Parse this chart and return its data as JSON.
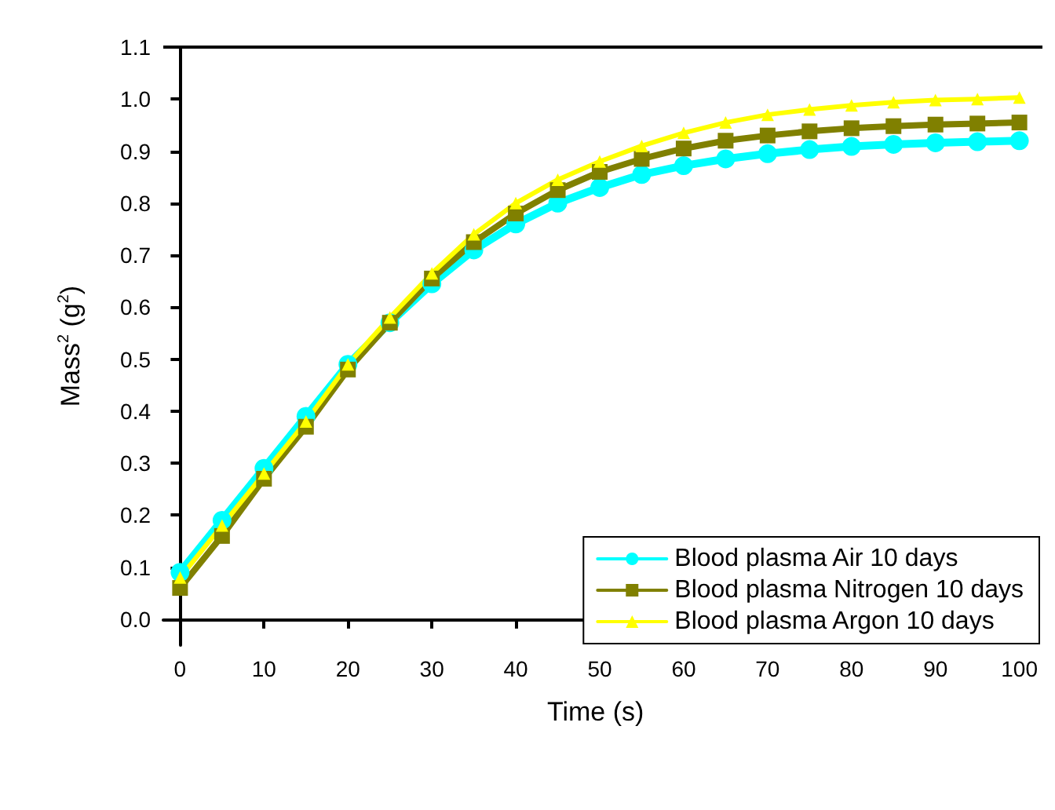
{
  "chart_data": {
    "type": "line",
    "xlabel": "Time (s)",
    "ylabel": "Mass$^{2}$ (g$^{2}$)",
    "x": [
      0,
      5,
      10,
      15,
      20,
      25,
      30,
      35,
      40,
      45,
      50,
      55,
      60,
      65,
      70,
      75,
      80,
      85,
      90,
      95,
      100
    ],
    "series": [
      {
        "name": "Blood plasma Air 10 days",
        "color": "#00ffff",
        "marker": "circle",
        "values": [
          0.09,
          0.19,
          0.29,
          0.39,
          0.49,
          0.57,
          0.645,
          0.71,
          0.76,
          0.8,
          0.83,
          0.855,
          0.872,
          0.885,
          0.895,
          0.903,
          0.909,
          0.913,
          0.916,
          0.918,
          0.92
        ]
      },
      {
        "name": "Blood plasma Nitrogen 10 days",
        "color": "#808000",
        "marker": "square",
        "values": [
          0.06,
          0.16,
          0.27,
          0.37,
          0.48,
          0.57,
          0.655,
          0.725,
          0.78,
          0.825,
          0.86,
          0.885,
          0.905,
          0.92,
          0.93,
          0.938,
          0.944,
          0.948,
          0.951,
          0.953,
          0.955
        ]
      },
      {
        "name": "Blood plasma Argon 10 days",
        "color": "#ffff00",
        "marker": "triangle",
        "values": [
          0.08,
          0.18,
          0.28,
          0.38,
          0.49,
          0.58,
          0.665,
          0.74,
          0.8,
          0.845,
          0.88,
          0.91,
          0.935,
          0.955,
          0.97,
          0.98,
          0.988,
          0.994,
          0.998,
          1.0,
          1.003
        ]
      }
    ],
    "xlim": [
      -2,
      101
    ],
    "xticks": [
      0,
      10,
      20,
      30,
      40,
      50,
      60,
      70,
      80,
      90,
      100
    ],
    "ylim": [
      -0.05,
      1.1
    ],
    "yticks": [
      {
        "value": 0,
        "label": "0.0"
      },
      0.1,
      0.2,
      0.3,
      0.4,
      0.5,
      0.6,
      0.7,
      0.8,
      0.9,
      {
        "value": 1,
        "label": "1.0"
      },
      1.1
    ],
    "grid": false,
    "legend": "bottom right",
    "line_style": "solid"
  }
}
